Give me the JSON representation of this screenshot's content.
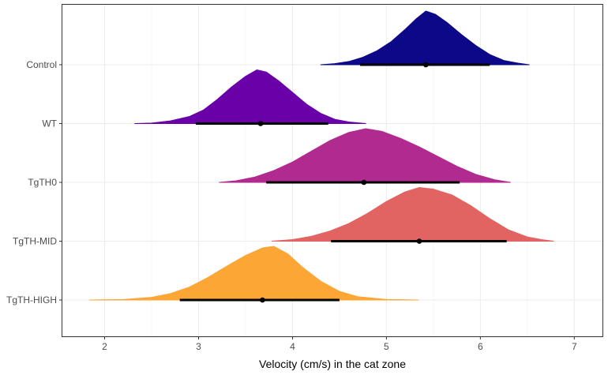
{
  "chart_data": {
    "type": "halfeye",
    "title": "",
    "xlabel": "Velocity (cm/s) in the cat zone",
    "ylabel": "",
    "xlim": [
      1.55,
      7.3
    ],
    "x_ticks": [
      2,
      3,
      4,
      5,
      6,
      7
    ],
    "x_tick_labels": [
      "2",
      "3",
      "4",
      "5",
      "6",
      "7"
    ],
    "grid": true,
    "legend": "none",
    "categories": [
      "Control",
      "WT",
      "TgTH0",
      "TgTH-MID",
      "TgTH-HIGH"
    ],
    "series": [
      {
        "category": "Control",
        "color": "#0d0887",
        "point": 5.42,
        "interval": [
          4.72,
          6.1
        ],
        "min": 4.3,
        "max": 6.52,
        "density": [
          [
            4.3,
            0.0
          ],
          [
            4.45,
            0.02
          ],
          [
            4.6,
            0.06
          ],
          [
            4.75,
            0.14
          ],
          [
            4.9,
            0.26
          ],
          [
            5.05,
            0.43
          ],
          [
            5.2,
            0.66
          ],
          [
            5.32,
            0.86
          ],
          [
            5.42,
            1.0
          ],
          [
            5.52,
            0.94
          ],
          [
            5.65,
            0.78
          ],
          [
            5.8,
            0.56
          ],
          [
            5.95,
            0.36
          ],
          [
            6.1,
            0.19
          ],
          [
            6.25,
            0.08
          ],
          [
            6.4,
            0.03
          ],
          [
            6.52,
            0.0
          ]
        ]
      },
      {
        "category": "WT",
        "color": "#6a00a8",
        "point": 3.66,
        "interval": [
          2.97,
          4.38
        ],
        "min": 2.32,
        "max": 4.78,
        "density": [
          [
            2.32,
            0.0
          ],
          [
            2.5,
            0.01
          ],
          [
            2.7,
            0.05
          ],
          [
            2.9,
            0.13
          ],
          [
            3.05,
            0.25
          ],
          [
            3.2,
            0.45
          ],
          [
            3.35,
            0.68
          ],
          [
            3.5,
            0.88
          ],
          [
            3.62,
            1.0
          ],
          [
            3.72,
            0.96
          ],
          [
            3.85,
            0.8
          ],
          [
            4.0,
            0.58
          ],
          [
            4.15,
            0.36
          ],
          [
            4.3,
            0.19
          ],
          [
            4.45,
            0.08
          ],
          [
            4.6,
            0.03
          ],
          [
            4.78,
            0.0
          ]
        ]
      },
      {
        "category": "TgTH0",
        "color": "#b12a90",
        "point": 4.76,
        "interval": [
          3.72,
          5.78
        ],
        "min": 3.22,
        "max": 6.32,
        "density": [
          [
            3.22,
            0.0
          ],
          [
            3.4,
            0.03
          ],
          [
            3.6,
            0.1
          ],
          [
            3.8,
            0.22
          ],
          [
            4.0,
            0.38
          ],
          [
            4.2,
            0.58
          ],
          [
            4.4,
            0.78
          ],
          [
            4.6,
            0.93
          ],
          [
            4.78,
            1.0
          ],
          [
            4.95,
            0.95
          ],
          [
            5.15,
            0.82
          ],
          [
            5.35,
            0.66
          ],
          [
            5.55,
            0.48
          ],
          [
            5.75,
            0.3
          ],
          [
            5.95,
            0.15
          ],
          [
            6.15,
            0.05
          ],
          [
            6.32,
            0.0
          ]
        ]
      },
      {
        "category": "TgTH-MID",
        "color": "#e16462",
        "point": 5.35,
        "interval": [
          4.41,
          6.28
        ],
        "min": 3.78,
        "max": 6.78,
        "density": [
          [
            3.78,
            0.0
          ],
          [
            4.0,
            0.03
          ],
          [
            4.2,
            0.09
          ],
          [
            4.4,
            0.19
          ],
          [
            4.6,
            0.33
          ],
          [
            4.8,
            0.52
          ],
          [
            5.0,
            0.74
          ],
          [
            5.2,
            0.92
          ],
          [
            5.35,
            1.0
          ],
          [
            5.5,
            0.97
          ],
          [
            5.7,
            0.86
          ],
          [
            5.9,
            0.66
          ],
          [
            6.1,
            0.42
          ],
          [
            6.3,
            0.21
          ],
          [
            6.5,
            0.08
          ],
          [
            6.65,
            0.03
          ],
          [
            6.78,
            0.0
          ]
        ]
      },
      {
        "category": "TgTH-HIGH",
        "color": "#fca636",
        "point": 3.68,
        "interval": [
          2.8,
          4.5
        ],
        "min": 1.84,
        "max": 5.34,
        "density": [
          [
            1.84,
            0.0
          ],
          [
            2.2,
            0.01
          ],
          [
            2.5,
            0.05
          ],
          [
            2.7,
            0.12
          ],
          [
            2.9,
            0.24
          ],
          [
            3.1,
            0.42
          ],
          [
            3.3,
            0.63
          ],
          [
            3.5,
            0.83
          ],
          [
            3.68,
            0.97
          ],
          [
            3.8,
            1.0
          ],
          [
            3.95,
            0.86
          ],
          [
            4.1,
            0.62
          ],
          [
            4.3,
            0.35
          ],
          [
            4.5,
            0.16
          ],
          [
            4.7,
            0.06
          ],
          [
            5.0,
            0.01
          ],
          [
            5.34,
            0.0
          ]
        ]
      }
    ]
  }
}
